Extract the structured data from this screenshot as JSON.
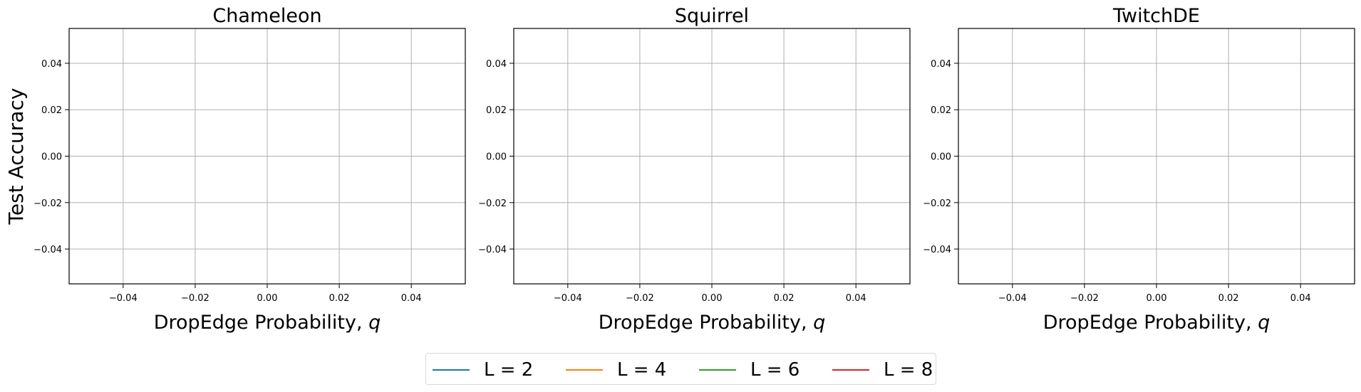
{
  "chart_data": [
    {
      "type": "line",
      "title": "Chameleon",
      "xlabel": "DropEdge Probability, q",
      "ylabel": "Test Accuracy",
      "xlim": [
        -0.055,
        0.055
      ],
      "ylim": [
        -0.055,
        0.055
      ],
      "xticks": [
        -0.04,
        -0.02,
        0.0,
        0.02,
        0.04
      ],
      "yticks": [
        -0.04,
        -0.02,
        0.0,
        0.02,
        0.04
      ],
      "xtick_labels": [
        "−0.04",
        "−0.02",
        "0.00",
        "0.02",
        "0.04"
      ],
      "ytick_labels": [
        "−0.04",
        "−0.02",
        "0.00",
        "0.02",
        "0.04"
      ],
      "grid": true,
      "series": []
    },
    {
      "type": "line",
      "title": "Squirrel",
      "xlabel": "DropEdge Probability, q",
      "ylabel": "",
      "xlim": [
        -0.055,
        0.055
      ],
      "ylim": [
        -0.055,
        0.055
      ],
      "xticks": [
        -0.04,
        -0.02,
        0.0,
        0.02,
        0.04
      ],
      "yticks": [
        -0.04,
        -0.02,
        0.0,
        0.02,
        0.04
      ],
      "xtick_labels": [
        "−0.04",
        "−0.02",
        "0.00",
        "0.02",
        "0.04"
      ],
      "ytick_labels": [
        "−0.04",
        "−0.02",
        "0.00",
        "0.02",
        "0.04"
      ],
      "grid": true,
      "series": []
    },
    {
      "type": "line",
      "title": "TwitchDE",
      "xlabel": "DropEdge Probability, q",
      "ylabel": "",
      "xlim": [
        -0.055,
        0.055
      ],
      "ylim": [
        -0.055,
        0.055
      ],
      "xticks": [
        -0.04,
        -0.02,
        0.0,
        0.02,
        0.04
      ],
      "yticks": [
        -0.04,
        -0.02,
        0.0,
        0.02,
        0.04
      ],
      "xtick_labels": [
        "−0.04",
        "−0.02",
        "0.00",
        "0.02",
        "0.04"
      ],
      "ytick_labels": [
        "−0.04",
        "−0.02",
        "0.00",
        "0.02",
        "0.04"
      ],
      "grid": true,
      "series": []
    }
  ],
  "legend": {
    "placement": "bottom-center",
    "entries": [
      {
        "label": "L = 2",
        "color": "#1f77b4"
      },
      {
        "label": "L = 4",
        "color": "#ff7f0e"
      },
      {
        "label": "L = 6",
        "color": "#2ca02c"
      },
      {
        "label": "L = 8",
        "color": "#d62728"
      }
    ]
  },
  "colors": {
    "grid": "#b0b0b0",
    "axes": "#000000",
    "background": "#ffffff"
  }
}
